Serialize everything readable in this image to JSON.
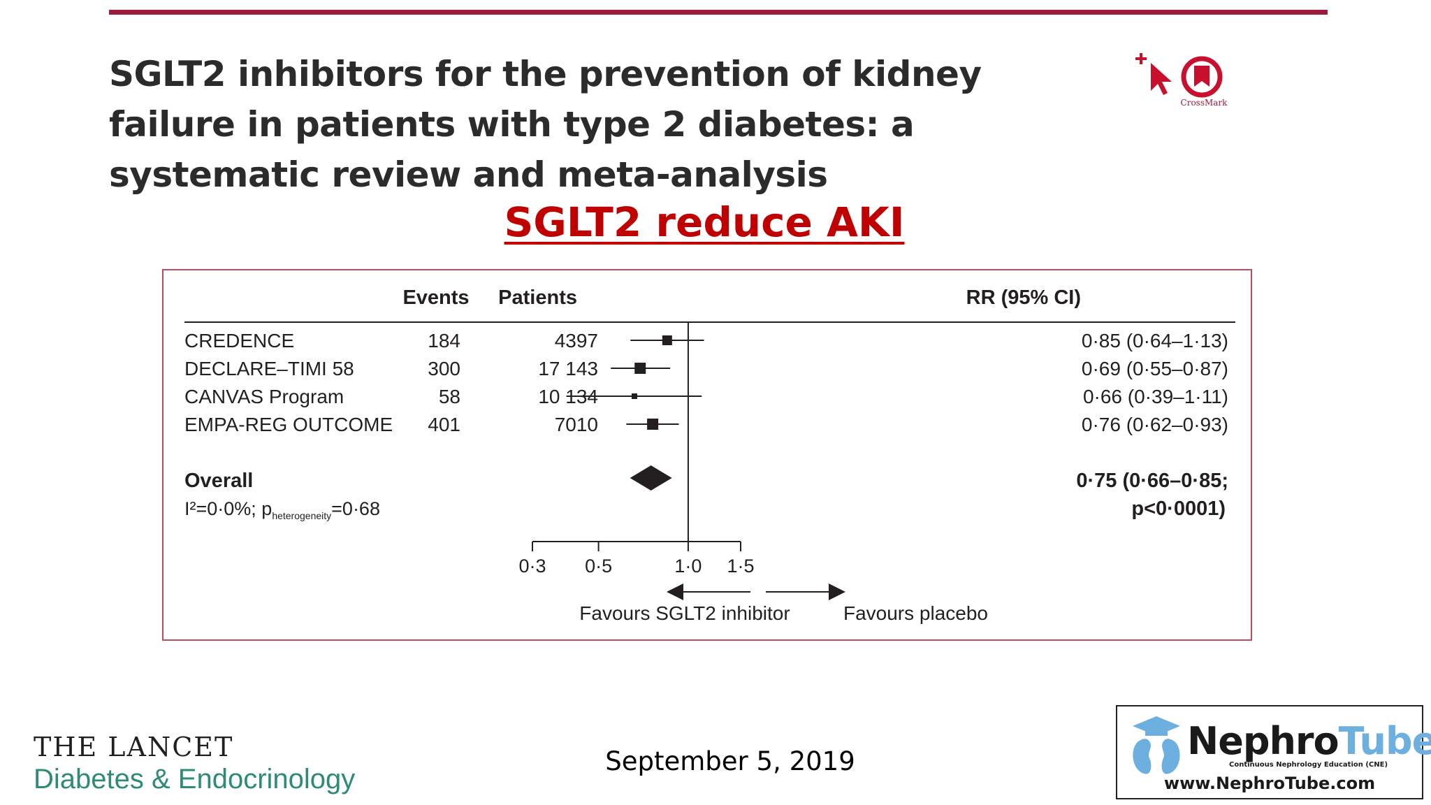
{
  "paper": {
    "title": "SGLT2 inhibitors for the prevention of kidney failure in patients with type 2 diabetes: a systematic review and meta-analysis",
    "crossmark_label": "CrossMark"
  },
  "slide": {
    "subtitle": "SGLT2 reduce AKI",
    "date": "September 5, 2019"
  },
  "journal": {
    "line1": "THE LANCET",
    "line2": "Diabetes & Endocrinology"
  },
  "nephrotube": {
    "brand_a": "Nephro",
    "brand_b": "Tube",
    "tagline": "Continuous Nephrology Education (CNE)",
    "url": "www.NephroTube.com"
  },
  "colors": {
    "rule": "#9b1b3b",
    "subtitle": "#c00000",
    "frame": "#c0495f",
    "journal_accent": "#2e8b74",
    "nephro_accent": "#6db0e0"
  },
  "chart_data": {
    "type": "forest",
    "columns": {
      "events": "Events",
      "patients": "Patients",
      "rr": "RR (95% CI)"
    },
    "studies": [
      {
        "name": "CREDENCE",
        "events": "184",
        "patients": "4397",
        "rr": 0.85,
        "lo": 0.64,
        "hi": 1.13,
        "label": "0·85 (0·64–1·13)"
      },
      {
        "name": "DECLARE–TIMI 58",
        "events": "300",
        "patients": "17 143",
        "rr": 0.69,
        "lo": 0.55,
        "hi": 0.87,
        "label": "0·69 (0·55–0·87)"
      },
      {
        "name": "CANVAS Program",
        "events": "58",
        "patients": "10 134",
        "rr": 0.66,
        "lo": 0.39,
        "hi": 1.11,
        "label": "0·66 (0·39–1·11)"
      },
      {
        "name": "EMPA-REG OUTCOME",
        "events": "401",
        "patients": "7010",
        "rr": 0.76,
        "lo": 0.62,
        "hi": 0.93,
        "label": "0·76 (0·62–0·93)"
      }
    ],
    "overall": {
      "name": "Overall",
      "rr": 0.75,
      "lo": 0.66,
      "hi": 0.85,
      "label_line1": "0·75 (0·66–0·85;",
      "label_line2": "p<0·0001)",
      "heterogeneity_prefix": "I²=0·0%; p",
      "heterogeneity_sub": "heterogeneity",
      "heterogeneity_suffix": "=0·68"
    },
    "x_axis": {
      "scale": "log",
      "ticks": [
        {
          "value": 0.3,
          "label": "0·3"
        },
        {
          "value": 0.5,
          "label": "0·5"
        },
        {
          "value": 1.0,
          "label": "1·0"
        },
        {
          "value": 1.5,
          "label": "1·5"
        }
      ],
      "reference": 1.0
    },
    "favours_left": "Favours SGLT2 inhibitor",
    "favours_right": "Favours placebo"
  }
}
